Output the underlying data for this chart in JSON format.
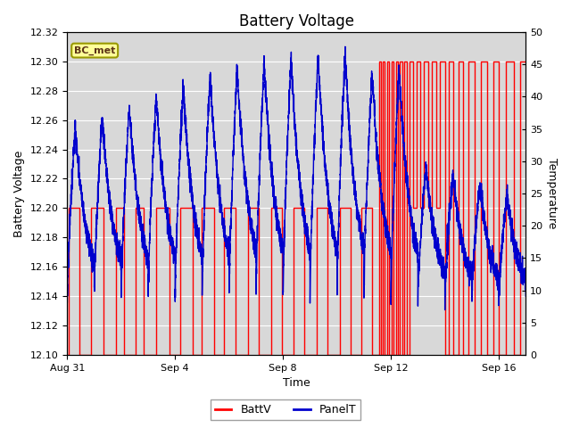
{
  "title": "Battery Voltage",
  "xlabel": "Time",
  "ylabel_left": "Battery Voltage",
  "ylabel_right": "Temperature",
  "legend_label": "BC_met",
  "batt_label": "BattV",
  "panel_label": "PanelT",
  "batt_color": "#FF0000",
  "panel_color": "#0000CD",
  "ylim_left": [
    12.1,
    12.32
  ],
  "ylim_right": [
    0,
    50
  ],
  "background_color": "#FFFFFF",
  "plot_bg_color": "#D8D8D8",
  "grid_color": "#FFFFFF",
  "legend_box_facecolor": "#FFFF99",
  "legend_box_edgecolor": "#999900",
  "title_fontsize": 12,
  "axis_fontsize": 9,
  "tick_fontsize": 8,
  "tick_positions": [
    0,
    4,
    8,
    12,
    16
  ],
  "tick_labels": [
    "Aug 31",
    "Sep 4",
    "Sep 8",
    "Sep 12",
    "Sep 16"
  ],
  "xlim": [
    0,
    17
  ],
  "yticks_left": [
    12.1,
    12.12,
    12.14,
    12.16,
    12.18,
    12.2,
    12.22,
    12.24,
    12.26,
    12.28,
    12.3,
    12.32
  ],
  "yticks_right": [
    0,
    5,
    10,
    15,
    20,
    25,
    30,
    35,
    40,
    45,
    50
  ]
}
